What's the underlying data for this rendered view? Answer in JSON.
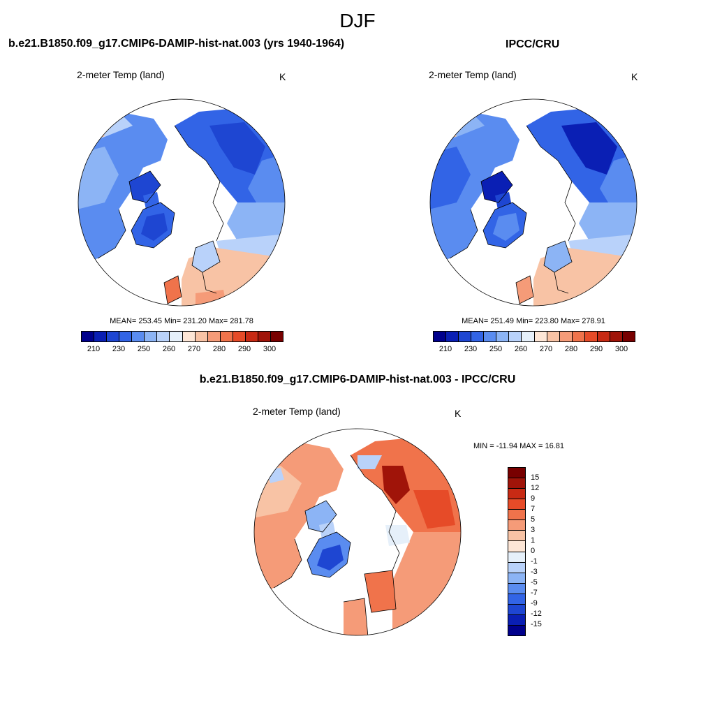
{
  "title": "DJF",
  "panels": [
    {
      "title": "b.e21.B1850.f09_g17.CMIP6-DAMIP-hist-nat.003 (yrs 1940-1964)",
      "variable": "2-meter Temp (land)",
      "units": "K",
      "stats": "MEAN= 253.45  Min= 231.20  Max= 281.78"
    },
    {
      "title": "IPCC/CRU",
      "variable": "2-meter Temp (land)",
      "units": "K",
      "stats": "MEAN= 251.49  Min= 223.80  Max= 278.91"
    },
    {
      "title": "b.e21.B1850.f09_g17.CMIP6-DAMIP-hist-nat.003 - IPCC/CRU",
      "variable": "2-meter Temp (land)",
      "units": "K",
      "stats": "MIN = -11.94 MAX =  16.81"
    }
  ],
  "abs_colorbar": {
    "colors": [
      "#00008c",
      "#0a1fb4",
      "#1e46d2",
      "#3264e6",
      "#5a8cf0",
      "#8cb4f5",
      "#b9d2fa",
      "#e6f0fa",
      "#fde6d6",
      "#f8c3a5",
      "#f59b78",
      "#f0734b",
      "#e64b28",
      "#c82a14",
      "#a01409",
      "#780000"
    ],
    "ticks": [
      "210",
      "230",
      "250",
      "260",
      "270",
      "280",
      "290",
      "300"
    ]
  },
  "diff_colorbar": {
    "colors": [
      "#780000",
      "#a01409",
      "#c82a14",
      "#e64b28",
      "#f0734b",
      "#f59b78",
      "#f8c3a5",
      "#fde6d6",
      "#e6f0fa",
      "#b9d2fa",
      "#8cb4f5",
      "#5a8cf0",
      "#3264e6",
      "#1e46d2",
      "#0a1fb4",
      "#00008c"
    ],
    "ticks": [
      "15",
      "12",
      "9",
      "7",
      "5",
      "3",
      "1",
      "0",
      "-1",
      "-3",
      "-5",
      "-7",
      "-9",
      "-12",
      "-15"
    ]
  }
}
